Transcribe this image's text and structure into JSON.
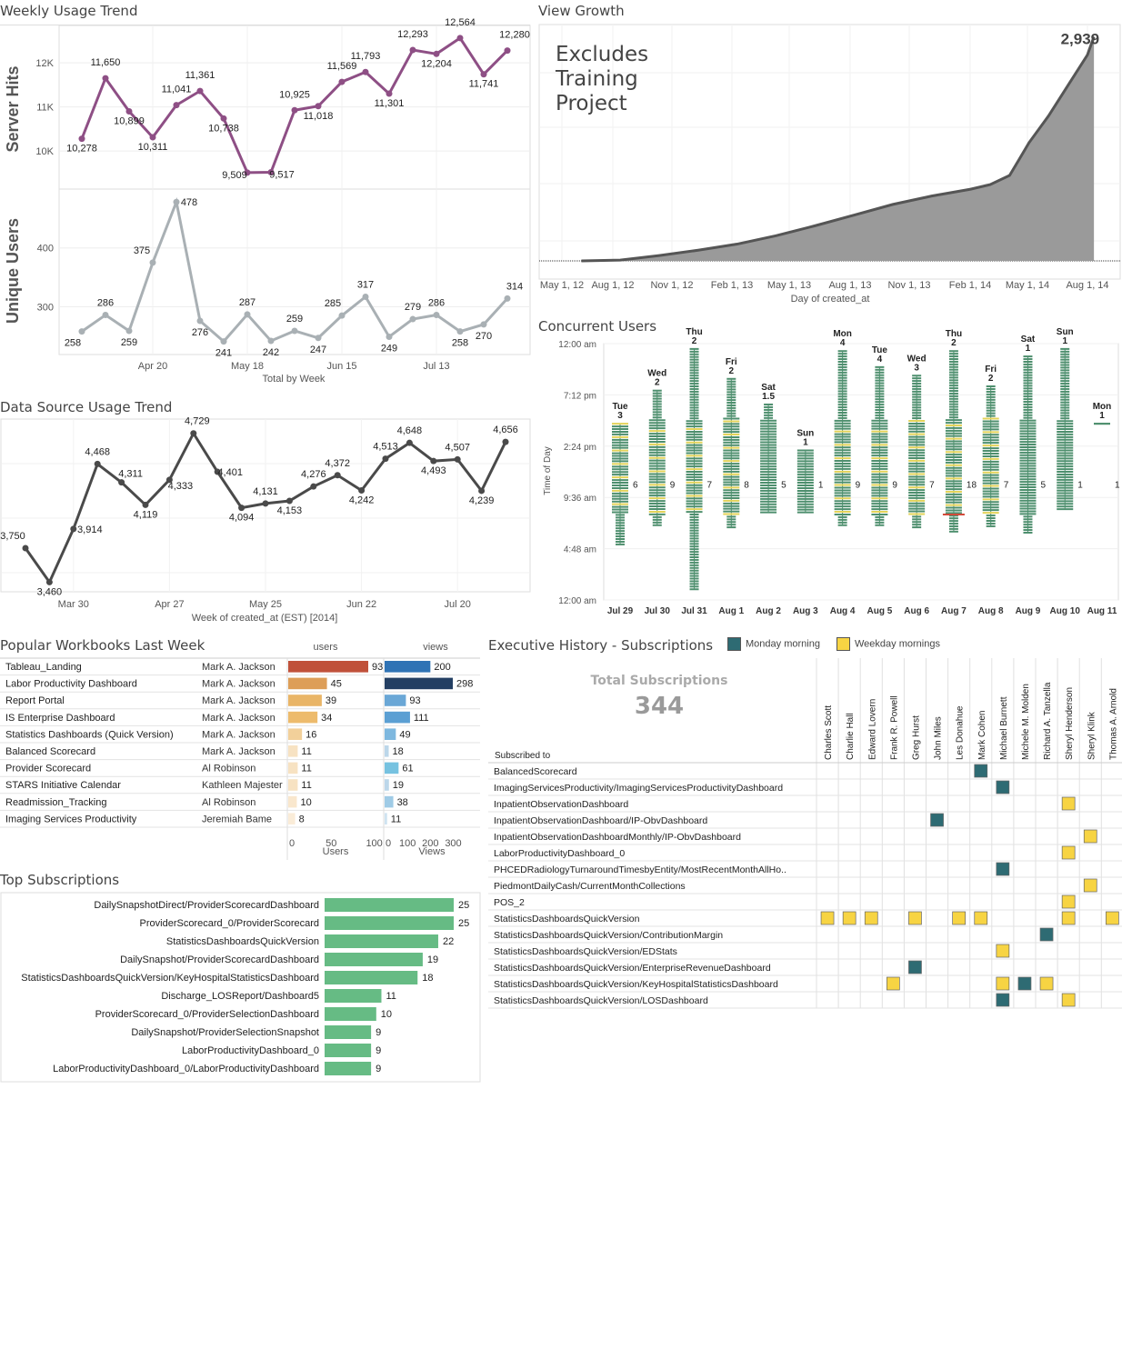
{
  "weekly_trend": {
    "title": "Weekly Usage Trend",
    "hits_label": "Server Hits",
    "users_label": "Unique Users",
    "xlabel": "Total by Week",
    "x_ticks": [
      "Apr 20",
      "May 18",
      "Jun 15",
      "Jul 13"
    ],
    "hits_ticks": [
      "10K",
      "11K",
      "12K"
    ],
    "users_ticks": [
      "300",
      "400"
    ]
  },
  "view_growth": {
    "title": "View Growth",
    "note": "Excludes Training Project",
    "end_label": "2,939",
    "xlabel": "Day of created_at",
    "x_ticks": [
      "May 1, 12",
      "Aug 1, 12",
      "Nov 1, 12",
      "Feb 1, 13",
      "May 1, 13",
      "Aug 1, 13",
      "Nov 1, 13",
      "Feb 1, 14",
      "May 1, 14",
      "Aug 1, 14"
    ]
  },
  "datasource_trend": {
    "title": "Data Source Usage Trend",
    "xlabel": "Week of created_at (EST) [2014]",
    "x_ticks": [
      "Mar 30",
      "Apr 27",
      "May 25",
      "Jun 22",
      "Jul 20"
    ]
  },
  "concurrent": {
    "title": "Concurrent Users",
    "ylabel": "Time of Day",
    "y_ticks": [
      "12:00 am",
      "7:12 pm",
      "2:24 pm",
      "9:36 am",
      "4:48 am",
      "12:00 am"
    ],
    "days": [
      {
        "date": "Jul 29",
        "dow": "Tue",
        "max": "3",
        "side": "6"
      },
      {
        "date": "Jul 30",
        "dow": "Wed",
        "max": "2",
        "side": "9"
      },
      {
        "date": "Jul 31",
        "dow": "Thu",
        "max": "2",
        "side": "7"
      },
      {
        "date": "Aug 1",
        "dow": "Fri",
        "max": "2",
        "side": "8"
      },
      {
        "date": "Aug 2",
        "dow": "Sat",
        "max": "1.5",
        "side": "5"
      },
      {
        "date": "Aug 3",
        "dow": "Sun",
        "max": "1",
        "side": "1"
      },
      {
        "date": "Aug 4",
        "dow": "Mon",
        "max": "4",
        "side": "9"
      },
      {
        "date": "Aug 5",
        "dow": "Tue",
        "max": "4",
        "side": "9"
      },
      {
        "date": "Aug 6",
        "dow": "Wed",
        "max": "3",
        "side": "7"
      },
      {
        "date": "Aug 7",
        "dow": "Thu",
        "max": "2",
        "side": "18"
      },
      {
        "date": "Aug 8",
        "dow": "Fri",
        "max": "2",
        "side": "7"
      },
      {
        "date": "Aug 9",
        "dow": "Sat",
        "max": "1",
        "side": "5"
      },
      {
        "date": "Aug 10",
        "dow": "Sun",
        "max": "1",
        "side": "1"
      },
      {
        "date": "Aug 11",
        "dow": "Mon",
        "max": "1",
        "side": "1"
      }
    ]
  },
  "popular": {
    "title": "Popular Workbooks Last Week",
    "users_header": "users",
    "views_header": "views",
    "users_axis_label": "Users",
    "views_axis_label": "Views",
    "users_ticks": [
      "0",
      "50",
      "100"
    ],
    "views_ticks": [
      "0",
      "100",
      "200",
      "300"
    ]
  },
  "exec": {
    "title": "Executive History - Subscriptions",
    "legend_monday": "Monday morning",
    "legend_weekday": "Weekday mornings",
    "total_label": "Total Subscriptions",
    "total_value": "344",
    "row_header": "Subscribed to",
    "columns": [
      "Charles Scott",
      "Charlie Hall",
      "Edward Lovern",
      "Frank R. Powell",
      "Greg Hurst",
      "John Miles",
      "Les Donahue",
      "Mark Cohen",
      "Michael Burnett",
      "Michele M. Molden",
      "Richard A. Tanzella",
      "Sheryl Henderson",
      "Sheryl Klink",
      "Thomas A. Arnold"
    ],
    "rows": [
      "BalancedScorecard",
      "ImagingServicesProductivity/ImagingServicesProductivityDashboard",
      "InpatientObservationDashboard",
      "InpatientObservationDashboard/IP-ObvDashboard",
      "InpatientObservationDashboardMonthly/IP-ObvDashboard",
      "LaborProductivityDashboard_0",
      "PHCEDRadiologyTurnaroundTimesbyEntity/MostRecentMonthAllHo..",
      "PiedmontDailyCash/CurrentMonthCollections",
      "POS_2",
      "StatisticsDashboardsQuickVersion",
      "StatisticsDashboardsQuickVersion/ContributionMargin",
      "StatisticsDashboardsQuickVersion/EDStats",
      "StatisticsDashboardsQuickVersion/EnterpriseRevenueDashboard",
      "StatisticsDashboardsQuickVersion/KeyHospitalStatisticsDashboard",
      "StatisticsDashboardsQuickVersion/LOSDashboard"
    ],
    "colors": {
      "monday": "#2e6b73",
      "weekday": "#f7d443"
    }
  },
  "top_subs": {
    "title": "Top Subscriptions"
  },
  "chart_data": [
    {
      "type": "line",
      "title": "Weekly Usage Trend",
      "ylabel": "Server Hits",
      "xlabel": "Total by Week",
      "x": [
        "Mar 30",
        "Apr 6",
        "Apr 13",
        "Apr 20",
        "Apr 27",
        "May 4",
        "May 11",
        "May 18",
        "May 25",
        "Jun 1",
        "Jun 8",
        "Jun 15",
        "Jun 22",
        "Jun 29",
        "Jul 6",
        "Jul 13",
        "Jul 20",
        "Jul 27",
        "Aug 3"
      ],
      "values": [
        10278,
        11650,
        10899,
        10311,
        11041,
        11361,
        10738,
        9509,
        9517,
        10925,
        11018,
        11569,
        11793,
        11301,
        12293,
        12204,
        12564,
        11741,
        12280
      ],
      "labels": [
        "10,278",
        "11,650",
        "10,899",
        "10,311",
        "11,041",
        "11,361",
        "10,738",
        "9,509",
        "9,517",
        "10,925",
        "11,018",
        "11,569",
        "11,793",
        "11,301",
        "12,293",
        "12,204",
        "12,564",
        "11,741",
        "12,280"
      ],
      "ylim": [
        9300,
        12850
      ],
      "color": "#8e4f85"
    },
    {
      "type": "line",
      "title": "Weekly Usage Trend",
      "ylabel": "Unique Users",
      "xlabel": "Total by Week",
      "x": [
        "Mar 30",
        "Apr 6",
        "Apr 13",
        "Apr 20",
        "Apr 27",
        "May 4",
        "May 11",
        "May 18",
        "May 25",
        "Jun 1",
        "Jun 8",
        "Jun 15",
        "Jun 22",
        "Jun 29",
        "Jul 6",
        "Jul 13",
        "Jul 20",
        "Jul 27",
        "Aug 3"
      ],
      "values": [
        258,
        286,
        259,
        375,
        478,
        276,
        241,
        287,
        242,
        259,
        247,
        285,
        317,
        249,
        279,
        286,
        258,
        270,
        314
      ],
      "ylim": [
        225,
        500
      ],
      "color": "#a9b0b4"
    },
    {
      "type": "area",
      "title": "View Growth",
      "xlabel": "Day of created_at",
      "x": [
        "Jun 1, 12",
        "Aug 1, 12",
        "Oct 1, 12",
        "Dec 1, 12",
        "Feb 1, 13",
        "Apr 1, 13",
        "Jun 1, 13",
        "Aug 1, 13",
        "Oct 1, 13",
        "Dec 1, 13",
        "Feb 1, 14",
        "Mar 1, 14",
        "Apr 1, 14",
        "Apr 15, 14",
        "May 1, 14",
        "Jun 1, 14",
        "Jul 1, 14",
        "Aug 1, 14",
        "Aug 11, 14"
      ],
      "values": [
        0,
        10,
        70,
        140,
        220,
        330,
        460,
        600,
        740,
        850,
        940,
        1000,
        1120,
        1320,
        1550,
        1900,
        2300,
        2700,
        2939
      ],
      "ylim": [
        0,
        3050
      ],
      "end_label": "2,939",
      "color": "#9a9a9a"
    },
    {
      "type": "line",
      "title": "Data Source Usage Trend",
      "xlabel": "Week of created_at (EST) [2014]",
      "x": [
        "Mar 16",
        "Mar 23",
        "Mar 30",
        "Apr 6",
        "Apr 13",
        "Apr 20",
        "Apr 27",
        "May 4",
        "May 11",
        "May 18",
        "May 25",
        "Jun 1",
        "Jun 8",
        "Jun 15",
        "Jun 22",
        "Jun 29",
        "Jul 6",
        "Jul 13",
        "Jul 20",
        "Jul 27",
        "Aug 3"
      ],
      "values": [
        3750,
        3460,
        3914,
        4468,
        4311,
        4119,
        4333,
        4729,
        4401,
        4094,
        4131,
        4153,
        4276,
        4372,
        4242,
        4513,
        4648,
        4493,
        4507,
        4239,
        4656
      ],
      "labels": [
        "3,750",
        "3,460",
        "3,914",
        "4,468",
        "4,311",
        "4,119",
        "4,333",
        "4,729",
        "4,401",
        "4,094",
        "4,131",
        "4,153",
        "4,276",
        "4,372",
        "4,242",
        "4,513",
        "4,648",
        "4,493",
        "4,507",
        "4,239",
        "4,656"
      ],
      "ylim": [
        3440,
        4820
      ],
      "color": "#4a4a4a"
    },
    {
      "type": "bar",
      "title": "Popular Workbooks Last Week",
      "categories": [
        "Tableau_Landing",
        "Labor Productivity Dashboard",
        "Report Portal",
        "IS Enterprise Dashboard",
        "Statistics Dashboards (Quick Version)",
        "Balanced Scorecard",
        "Provider Scorecard",
        "STARS Initiative Calendar",
        "Readmission_Tracking",
        "Imaging Services Productivity"
      ],
      "authors": [
        "Mark A. Jackson",
        "Mark A. Jackson",
        "Mark A. Jackson",
        "Mark A. Jackson",
        "Mark A. Jackson",
        "Mark A. Jackson",
        "Al Robinson",
        "Kathleen Majester",
        "Al Robinson",
        "Jeremiah Bame"
      ],
      "series": [
        {
          "name": "Users",
          "values": [
            93,
            45,
            39,
            34,
            16,
            11,
            11,
            11,
            10,
            8
          ]
        },
        {
          "name": "Views",
          "values": [
            200,
            298,
            93,
            111,
            49,
            18,
            61,
            19,
            38,
            11
          ]
        }
      ],
      "xlim_users": [
        0,
        120
      ],
      "xlim_views": [
        0,
        350
      ],
      "user_colors": [
        "#c0513a",
        "#dd9e58",
        "#e9b567",
        "#edbb6c",
        "#f2d09a",
        "#f7e2c2",
        "#f7e2c2",
        "#f7e2c2",
        "#f9e7cd",
        "#faecd8"
      ],
      "view_colors": [
        "#2f73b5",
        "#243f63",
        "#6aa7d6",
        "#5b9fd3",
        "#7eb8df",
        "#bcd7ea",
        "#76c2e0",
        "#bcd7ea",
        "#9fcbe6",
        "#cfe3f1"
      ]
    },
    {
      "type": "heatmap",
      "title": "Executive History - Subscriptions",
      "cells": [
        {
          "row": 0,
          "col": 7,
          "type": "monday"
        },
        {
          "row": 1,
          "col": 8,
          "type": "monday"
        },
        {
          "row": 2,
          "col": 11,
          "type": "weekday"
        },
        {
          "row": 3,
          "col": 5,
          "type": "monday"
        },
        {
          "row": 4,
          "col": 12,
          "type": "weekday"
        },
        {
          "row": 5,
          "col": 11,
          "type": "weekday"
        },
        {
          "row": 6,
          "col": 8,
          "type": "monday"
        },
        {
          "row": 7,
          "col": 12,
          "type": "weekday"
        },
        {
          "row": 8,
          "col": 11,
          "type": "weekday"
        },
        {
          "row": 9,
          "col": 0,
          "type": "weekday"
        },
        {
          "row": 9,
          "col": 1,
          "type": "weekday"
        },
        {
          "row": 9,
          "col": 2,
          "type": "weekday"
        },
        {
          "row": 9,
          "col": 4,
          "type": "weekday"
        },
        {
          "row": 9,
          "col": 6,
          "type": "weekday"
        },
        {
          "row": 9,
          "col": 7,
          "type": "weekday"
        },
        {
          "row": 9,
          "col": 11,
          "type": "weekday"
        },
        {
          "row": 9,
          "col": 13,
          "type": "weekday"
        },
        {
          "row": 10,
          "col": 10,
          "type": "monday"
        },
        {
          "row": 11,
          "col": 8,
          "type": "weekday"
        },
        {
          "row": 12,
          "col": 4,
          "type": "monday"
        },
        {
          "row": 13,
          "col": 3,
          "type": "weekday"
        },
        {
          "row": 13,
          "col": 8,
          "type": "weekday"
        },
        {
          "row": 13,
          "col": 9,
          "type": "monday"
        },
        {
          "row": 13,
          "col": 10,
          "type": "weekday"
        },
        {
          "row": 14,
          "col": 8,
          "type": "monday"
        },
        {
          "row": 14,
          "col": 11,
          "type": "weekday"
        }
      ]
    },
    {
      "type": "bar",
      "title": "Top Subscriptions",
      "categories": [
        "DailySnapshotDirect/ProviderScorecardDashboard",
        "ProviderScorecard_0/ProviderScorecard",
        "StatisticsDashboardsQuickVersion",
        "DailySnapshot/ProviderScorecardDashboard",
        "StatisticsDashboardsQuickVersion/KeyHospitalStatisticsDashboard",
        "Discharge_LOSReport/Dashboard5",
        "ProviderScorecard_0/ProviderSelectionDashboard",
        "DailySnapshot/ProviderSelectionSnapshot",
        "LaborProductivityDashboard_0",
        "LaborProductivityDashboard_0/LaborProductivityDashboard"
      ],
      "values": [
        25,
        25,
        22,
        19,
        18,
        11,
        10,
        9,
        9,
        9
      ],
      "xlim": [
        0,
        30
      ],
      "color": "#66bb84"
    },
    {
      "type": "scatter",
      "title": "Concurrent Users",
      "categories": [
        "Jul 29",
        "Jul 30",
        "Jul 31",
        "Aug 1",
        "Aug 2",
        "Aug 3",
        "Aug 4",
        "Aug 5",
        "Aug 6",
        "Aug 7",
        "Aug 8",
        "Aug 9",
        "Aug 10",
        "Aug 11"
      ],
      "ranges_hours": [
        [
          5.2,
          16.5
        ],
        [
          7.0,
          19.6
        ],
        [
          1.0,
          23.5
        ],
        [
          6.8,
          20.7
        ],
        [
          8.2,
          18.3
        ],
        [
          8.2,
          14.0
        ],
        [
          7.0,
          23.3
        ],
        [
          7.0,
          21.8
        ],
        [
          6.8,
          21.0
        ],
        [
          6.4,
          23.3
        ],
        [
          6.9,
          20.0
        ],
        [
          6.3,
          22.8
        ],
        [
          8.5,
          23.5
        ],
        [
          16.5,
          16.5
        ]
      ],
      "ylabel": "Time of Day",
      "colors": {
        "low": "#4e8f6e",
        "mid": "#e3d35a",
        "high": "#d24a3a"
      }
    }
  ]
}
